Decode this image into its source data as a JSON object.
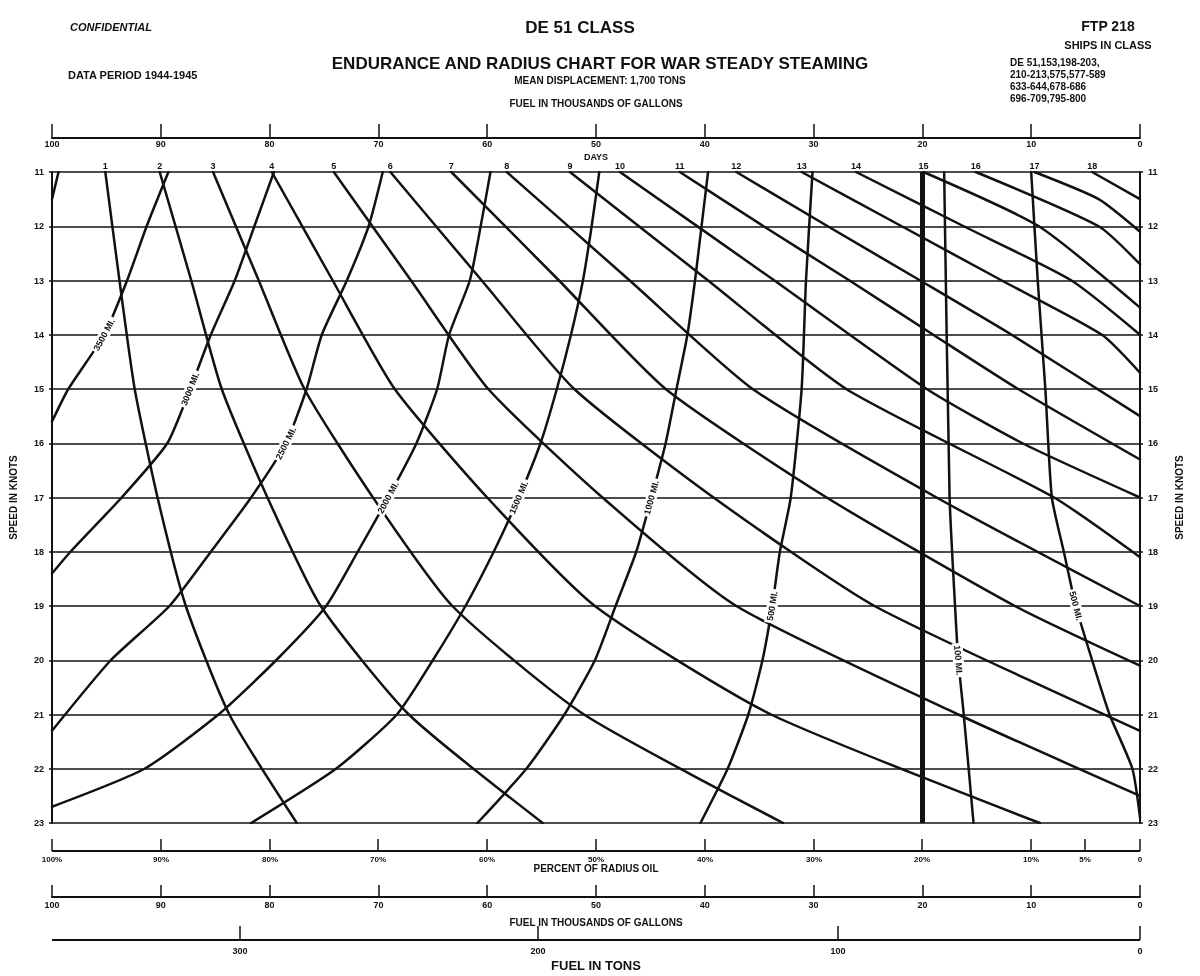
{
  "chart_data": {
    "type": "line",
    "title": "ENDURANCE AND RADIUS CHART FOR WAR STEADY STEAMING",
    "subtitle": "MEAN DISPLACEMENT: 1,700 TONS",
    "annotations": [
      "CONFIDENTIAL",
      "DATA PERIOD 1944-1945",
      "DE 51 CLASS",
      "FTP 218",
      "SHIPS IN CLASS",
      "DE 51,153,198-203,\n210-213,575,577-589\n633-644,678-686\n696-709,795-800",
      "DAYS",
      "PERCENT OF RADIUS OIL",
      "100%",
      "90%",
      "80%",
      "70%",
      "60%",
      "50%",
      "40%",
      "30%",
      "20%",
      "10%",
      "5%",
      "0",
      "FUEL IN TONS",
      "300",
      "200",
      "100",
      "0"
    ],
    "xlabel": "FUEL IN THOUSANDS OF GALLONS",
    "xlim": [
      100,
      0
    ],
    "xticks": [
      100,
      90,
      80,
      70,
      60,
      50,
      40,
      30,
      20,
      10,
      0
    ],
    "x2label": "FUEL IN THOUSANDS OF GALLONS",
    "x2lim": [
      100,
      0
    ],
    "x2ticks": [
      100,
      90,
      80,
      70,
      60,
      50,
      40,
      30,
      20,
      10,
      0
    ],
    "ylabel": "SPEED IN KNOTS",
    "ylim": [
      23,
      11
    ],
    "yticks": [
      11,
      12,
      13,
      14,
      15,
      16,
      17,
      18,
      19,
      20,
      21,
      22,
      23
    ],
    "y2label": "SPEED IN KNOTS",
    "y2lim": [
      23,
      11
    ],
    "y2ticks": [
      11,
      12,
      13,
      14,
      15,
      16,
      17,
      18,
      19,
      20,
      21,
      22,
      23
    ],
    "grid": "y",
    "line_style": "solid",
    "ref_lines": [
      {
        "axis": "x",
        "value": 20,
        "color": "#111111"
      }
    ],
    "series": [
      {
        "name": "1",
        "color": "#111111",
        "x": [
          95.1,
          93.8,
          92.4,
          90.3,
          87.7,
          83.7,
          77.5
        ],
        "values": [
          11,
          13,
          15,
          17,
          19,
          21,
          23
        ]
      },
      {
        "name": "2",
        "color": "#111111",
        "x": [
          90.1,
          87.2,
          84.4,
          80.2,
          75.3,
          67.2,
          54.9
        ],
        "values": [
          11,
          13,
          15,
          17,
          19,
          21,
          23
        ]
      },
      {
        "name": "3",
        "color": "#111111",
        "x": [
          85.2,
          81.0,
          76.8,
          70.5,
          63.2,
          51.1,
          32.8
        ],
        "values": [
          11,
          13,
          15,
          17,
          19,
          21,
          23
        ]
      },
      {
        "name": "4",
        "color": "#111111",
        "x": [
          79.8,
          74.2,
          68.5,
          60.0,
          50.1,
          33.9,
          9.2
        ],
        "values": [
          11,
          13,
          15,
          17,
          19,
          21,
          23
        ]
      },
      {
        "name": "5",
        "color": "#111111",
        "x": [
          74.1,
          67.0,
          59.9,
          49.4,
          37.1,
          16.7,
          0
        ],
        "values": [
          11,
          13,
          15,
          17,
          19,
          21,
          22.5
        ]
      },
      {
        "name": "6",
        "color": "#111111",
        "x": [
          68.9,
          60.5,
          52.0,
          39.2,
          24.4,
          0
        ],
        "values": [
          11,
          13,
          15,
          17,
          19,
          21.3
        ]
      },
      {
        "name": "7",
        "color": "#111111",
        "x": [
          63.3,
          53.4,
          43.6,
          28.8,
          11.5,
          0
        ],
        "values": [
          11,
          13,
          15,
          17,
          19,
          20.1
        ]
      },
      {
        "name": "8",
        "color": "#111111",
        "x": [
          58.2,
          46.9,
          35.6,
          18.7,
          0
        ],
        "values": [
          11,
          13,
          15,
          17,
          19.0
        ]
      },
      {
        "name": "9",
        "color": "#111111",
        "x": [
          52.4,
          39.7,
          27.0,
          7.9,
          0
        ],
        "values": [
          11,
          13,
          15,
          17,
          18.1
        ]
      },
      {
        "name": "10",
        "color": "#111111",
        "x": [
          47.8,
          33.6,
          19.6,
          10.8,
          0
        ],
        "values": [
          11,
          13,
          15,
          16,
          17
        ]
      },
      {
        "name": "11",
        "color": "#111111",
        "x": [
          42.3,
          34.6,
          26.7,
          19.0,
          11.2,
          0
        ],
        "values": [
          11,
          12,
          13,
          14,
          15,
          16.3
        ]
      },
      {
        "name": "12",
        "color": "#111111",
        "x": [
          37.1,
          28.7,
          20.2,
          11.8,
          0
        ],
        "values": [
          11,
          12,
          13,
          14,
          15.5
        ]
      },
      {
        "name": "13",
        "color": "#111111",
        "x": [
          31.1,
          21.9,
          12.7,
          3.5,
          0
        ],
        "values": [
          11,
          12,
          13,
          14,
          14.7
        ]
      },
      {
        "name": "14",
        "color": "#111111",
        "x": [
          26.1,
          16.2,
          6.3,
          0
        ],
        "values": [
          11,
          12,
          13,
          14.0
        ]
      },
      {
        "name": "15",
        "color": "#111111",
        "x": [
          19.9,
          9.3,
          0
        ],
        "values": [
          11,
          12,
          13.5
        ]
      },
      {
        "name": "16",
        "color": "#111111",
        "x": [
          15.1,
          3.8,
          0
        ],
        "values": [
          11,
          12,
          12.7
        ]
      },
      {
        "name": "17",
        "color": "#111111",
        "x": [
          9.7,
          3.8,
          0
        ],
        "values": [
          11,
          11.5,
          12.1
        ]
      },
      {
        "name": "18",
        "color": "#111111",
        "x": [
          4.4,
          0
        ],
        "values": [
          11,
          11.5
        ]
      },
      {
        "color": "#111111",
        "x": [
          99.4,
          100
        ],
        "values": [
          11,
          11.5
        ]
      },
      {
        "name": "3500 MI.",
        "color": "#111111",
        "x": [
          89.3,
          91.3,
          93.1,
          95.2,
          98.5,
          100
        ],
        "values": [
          11,
          12,
          13,
          14,
          15,
          15.6
        ]
      },
      {
        "name": "3000 MI.",
        "color": "#111111",
        "x": [
          79.6,
          81.4,
          83.2,
          85.4,
          87.3,
          89.4,
          93.6,
          98.3,
          100
        ],
        "values": [
          11,
          12,
          13,
          14,
          15,
          16,
          17,
          18,
          18.4
        ]
      },
      {
        "name": "2500 MI.",
        "color": "#111111",
        "x": [
          69.6,
          70.9,
          72.9,
          75.2,
          76.6,
          78.5,
          81.7,
          85.4,
          89.2,
          94.6,
          100
        ],
        "values": [
          11,
          12,
          13,
          14,
          15,
          16,
          17,
          18,
          19,
          20,
          21.3
        ]
      },
      {
        "name": "2000 MI.",
        "color": "#111111",
        "x": [
          59.7,
          60.6,
          61.6,
          63.5,
          64.6,
          66.5,
          69.1,
          71.9,
          74.8,
          79.4,
          84.7,
          91.5,
          100
        ],
        "values": [
          11,
          12,
          13,
          14,
          15,
          16,
          17,
          18,
          19,
          20,
          21,
          22,
          22.7
        ]
      },
      {
        "name": "1500 MI.",
        "color": "#111111",
        "x": [
          49.7,
          50.4,
          51.2,
          52.3,
          53.6,
          55.1,
          57.1,
          59.4,
          62.0,
          65.0,
          68.3,
          73.9,
          81.7
        ],
        "values": [
          11,
          12,
          13,
          14,
          15,
          16,
          17,
          18,
          19,
          20,
          21,
          22,
          23
        ]
      },
      {
        "name": "1000 MI.",
        "color": "#111111",
        "x": [
          39.7,
          40.3,
          40.9,
          41.6,
          42.6,
          43.6,
          44.9,
          46.3,
          48.2,
          50.1,
          52.9,
          56.4,
          60.9
        ],
        "values": [
          11,
          12,
          13,
          14,
          15,
          16,
          17,
          18,
          19,
          20,
          21,
          22,
          23
        ]
      },
      {
        "name": "500 MI.",
        "color": "#111111",
        "x": [
          30.1,
          30.7,
          31.1,
          32.1,
          33.1,
          33.8,
          34.7,
          36.0,
          37.9,
          40.4
        ],
        "values": [
          11,
          13,
          15,
          17,
          18,
          19,
          20,
          21,
          22,
          23
        ]
      },
      {
        "name": "100 MI.",
        "color": "#111111",
        "x": [
          18.0,
          17.5,
          17.0,
          16.7,
          16.2,
          15.3
        ],
        "values": [
          11,
          17,
          19,
          20,
          21,
          23
        ]
      },
      {
        "name": "500 MI.",
        "color": "#111111",
        "x": [
          10.0,
          9.4,
          8.7,
          8.1,
          7.0,
          5.9,
          4.4,
          2.8,
          0.7,
          0
        ],
        "values": [
          11,
          13,
          15,
          17,
          18,
          19,
          20,
          21,
          22,
          22.9
        ]
      }
    ]
  }
}
